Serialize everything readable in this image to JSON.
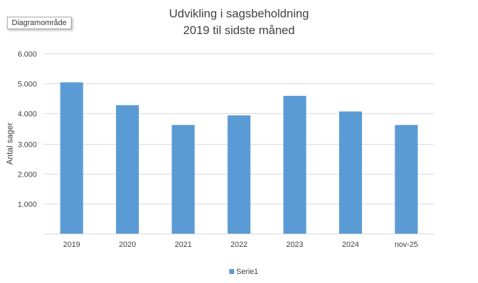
{
  "tooltip": "Diagramområde",
  "chart_data": {
    "type": "bar",
    "title_lines": [
      "Udvikling i sagsbeholdning",
      "2019 til sidste måned"
    ],
    "categories": [
      "2019",
      "2020",
      "2021",
      "2022",
      "2023",
      "2024",
      "nov-25"
    ],
    "series": [
      {
        "name": "Serie1",
        "values": [
          5040,
          4280,
          3620,
          3940,
          4590,
          4070,
          3620
        ]
      }
    ],
    "ylabel": "Antal sager",
    "xlabel": "",
    "ylim": [
      0,
      6000
    ],
    "yticks": [
      1000,
      2000,
      3000,
      4000,
      5000,
      6000
    ],
    "ytick_labels": [
      "1.000",
      "2.000",
      "3.000",
      "4.000",
      "5.000",
      "6.000"
    ],
    "grid": true,
    "legend_position": "bottom",
    "bar_color": "#5b9bd5",
    "grid_color": "#d9d9d9"
  }
}
